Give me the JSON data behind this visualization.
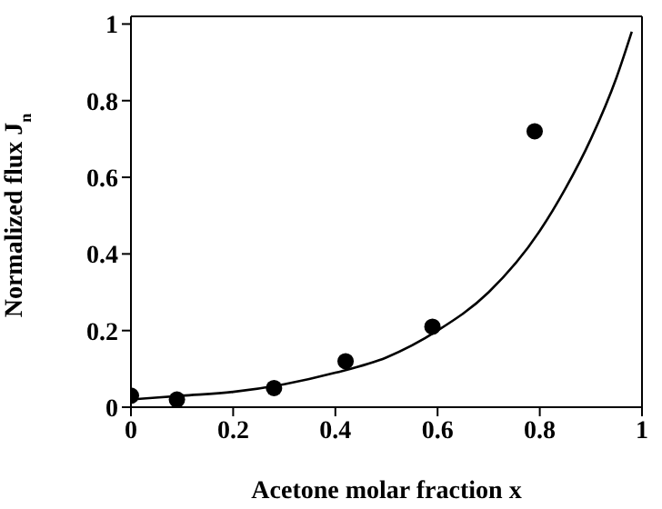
{
  "chart_data": {
    "type": "scatter",
    "xlabel": "Acetone molar fraction x",
    "ylabel": "Normalized flux J$_{n}$",
    "xlim": [
      0,
      1
    ],
    "xticks": [
      0,
      0.2,
      0.4,
      0.6,
      0.8,
      1
    ],
    "ylim": [
      0,
      1.02
    ],
    "yticks": [
      0,
      0.2,
      0.4,
      0.6,
      0.8,
      1
    ],
    "grid": false,
    "series": [
      {
        "color": "#000000",
        "marker": "circle",
        "x": [
          0,
          0.09,
          0.28,
          0.42,
          0.59,
          0.79
        ],
        "values": [
          0.03,
          0.02,
          0.05,
          0.12,
          0.21,
          0.72
        ]
      },
      {
        "type": "line",
        "color": "#000000",
        "marker": "none",
        "line_style": "solid",
        "x": [
          0,
          0.1,
          0.2,
          0.3,
          0.4,
          0.5,
          0.6,
          0.7,
          0.8,
          0.85,
          0.9,
          0.95,
          0.98
        ],
        "values": [
          0.02,
          0.03,
          0.04,
          0.06,
          0.09,
          0.13,
          0.2,
          0.3,
          0.46,
          0.57,
          0.7,
          0.86,
          0.98
        ]
      }
    ]
  }
}
